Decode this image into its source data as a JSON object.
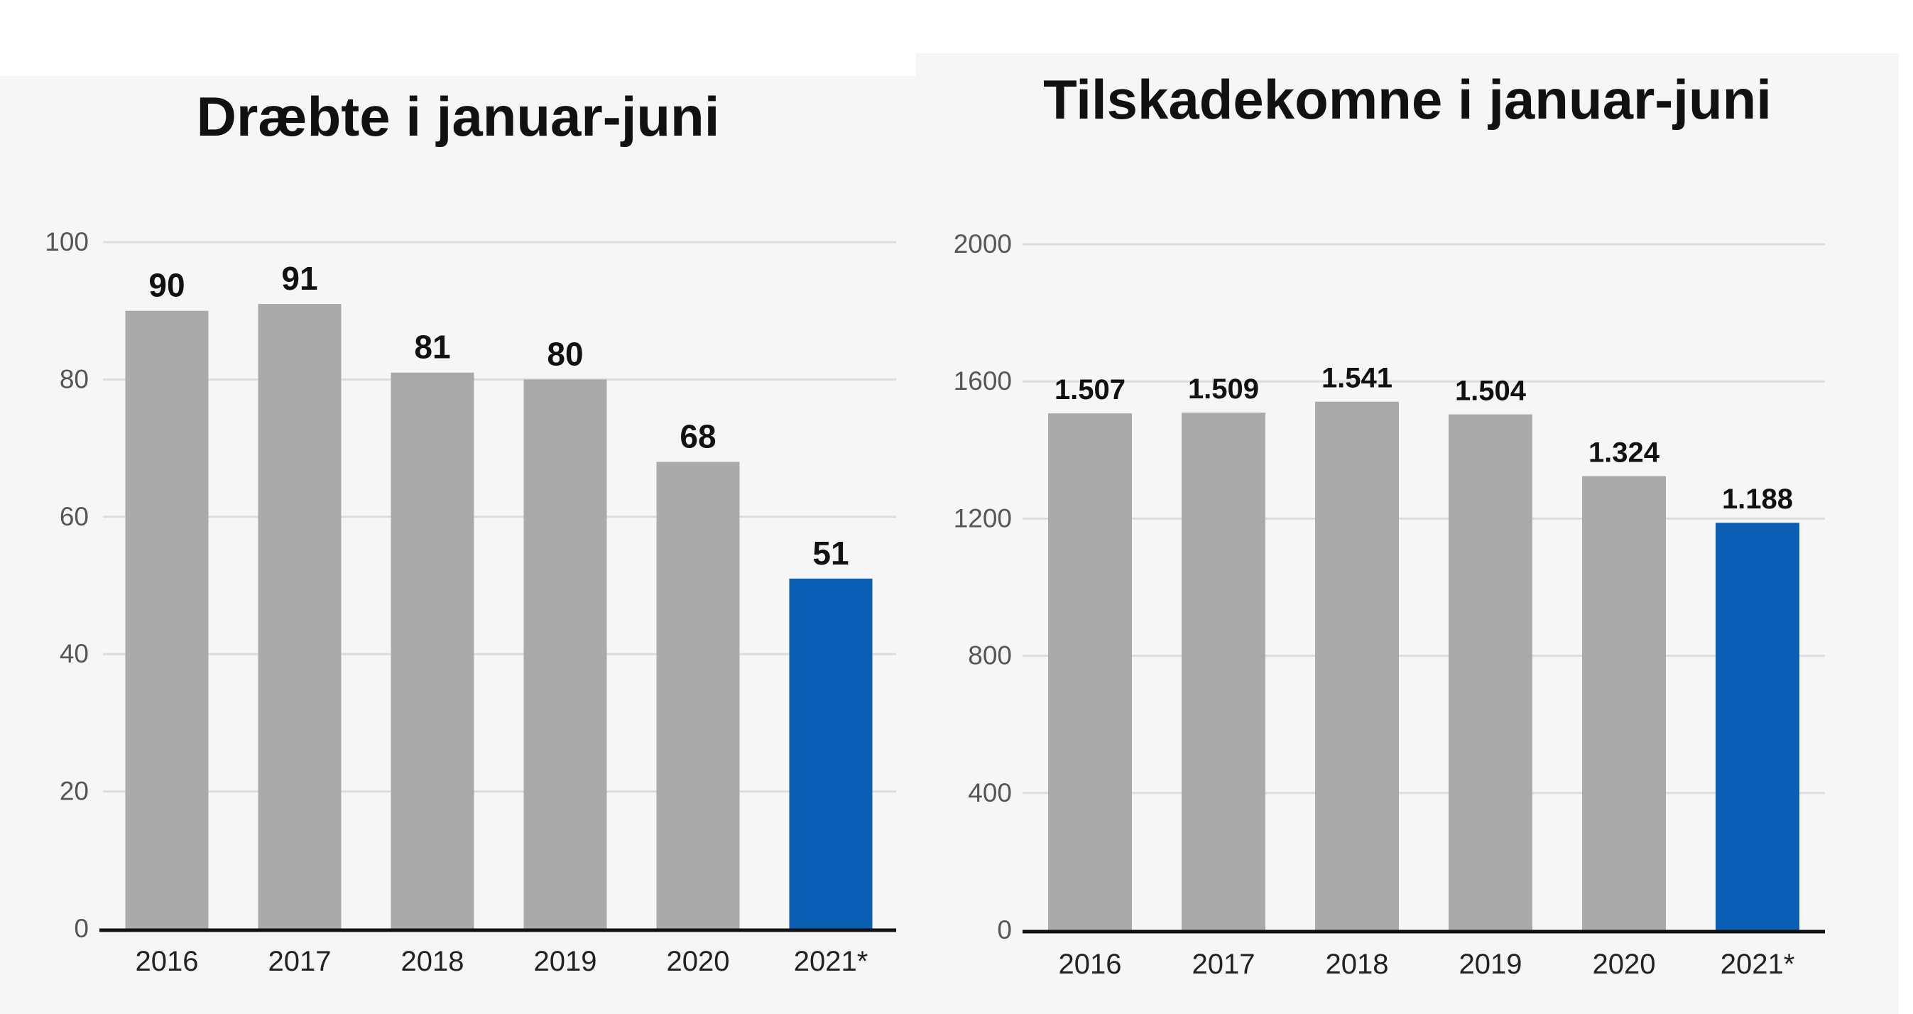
{
  "colors": {
    "bar": "#aaaaaa",
    "highlight": "#0a5fb4",
    "grid": "#dddddd",
    "axis": "#111111",
    "tick": "#555555",
    "label": "#111111"
  },
  "chart_data": [
    {
      "type": "bar",
      "title": "Dræbte i januar-juni",
      "categories": [
        "2016",
        "2017",
        "2018",
        "2019",
        "2020",
        "2021*"
      ],
      "values": [
        90,
        91,
        81,
        80,
        68,
        51
      ],
      "value_labels": [
        "90",
        "91",
        "81",
        "80",
        "68",
        "51"
      ],
      "highlight_index": 5,
      "ylim": [
        0,
        100
      ],
      "yticks": [
        0,
        20,
        40,
        60,
        80,
        100
      ],
      "ytick_labels": [
        "0",
        "20",
        "40",
        "60",
        "80",
        "100"
      ],
      "grid": true,
      "xlabel": "",
      "ylabel": ""
    },
    {
      "type": "bar",
      "title": "Tilskadekomne i januar-juni",
      "categories": [
        "2016",
        "2017",
        "2018",
        "2019",
        "2020",
        "2021*"
      ],
      "values": [
        1507,
        1509,
        1541,
        1504,
        1324,
        1188
      ],
      "value_labels": [
        "1.507",
        "1.509",
        "1.541",
        "1.504",
        "1.324",
        "1.188"
      ],
      "highlight_index": 5,
      "ylim": [
        0,
        2000
      ],
      "yticks": [
        0,
        400,
        800,
        1200,
        1600,
        2000
      ],
      "ytick_labels": [
        "0",
        "400",
        "800",
        "1200",
        "1600",
        "2000"
      ],
      "grid": true,
      "xlabel": "",
      "ylabel": ""
    }
  ]
}
